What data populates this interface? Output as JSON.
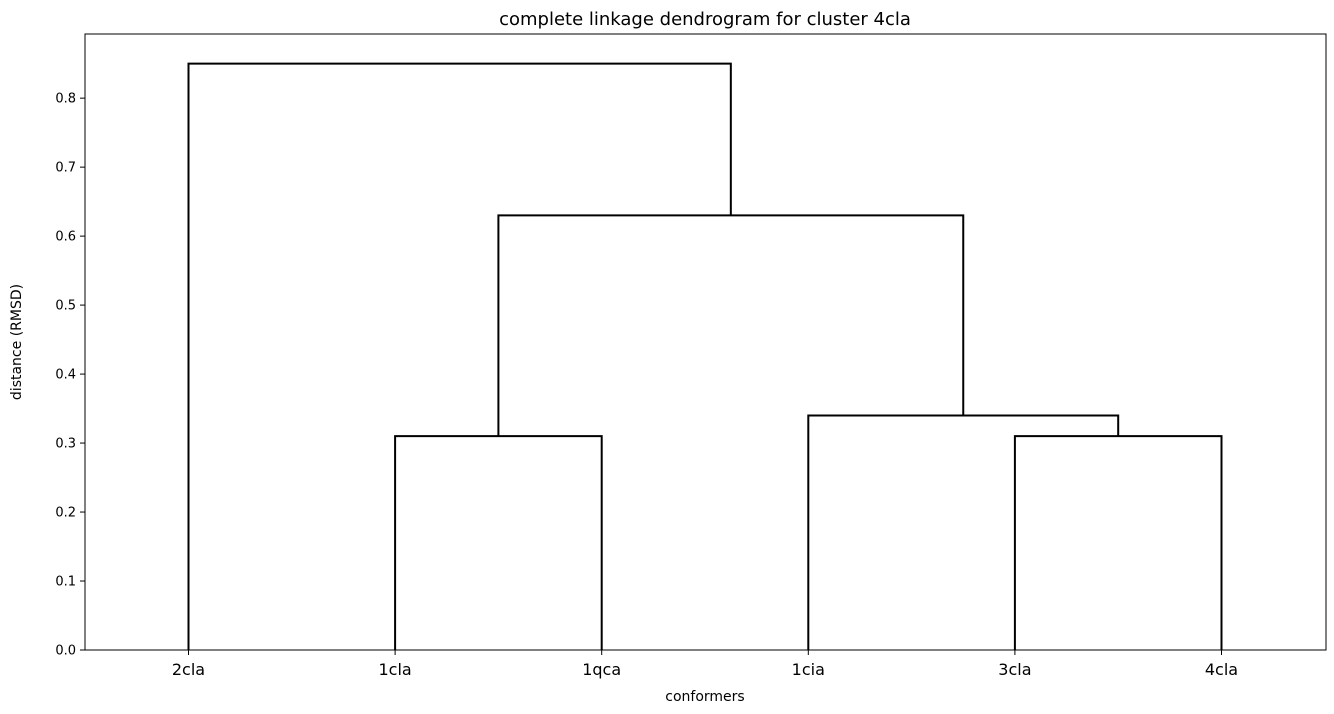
{
  "chart_data": {
    "type": "dendrogram",
    "title": "complete linkage dendrogram for cluster 4cla",
    "xlabel": "conformers",
    "ylabel": "distance (RMSD)",
    "ylim": [
      0,
      0.893
    ],
    "yticks": [
      0.0,
      0.1,
      0.2,
      0.3,
      0.4,
      0.5,
      0.6,
      0.7,
      0.8
    ],
    "ytick_labels": [
      "0.0",
      "0.1",
      "0.2",
      "0.3",
      "0.4",
      "0.5",
      "0.6",
      "0.7",
      "0.8"
    ],
    "leaves": [
      "2cla",
      "1cla",
      "1qca",
      "1cia",
      "3cla",
      "4cla"
    ],
    "merges": [
      {
        "left": "1cla",
        "right": "1qca",
        "distance": 0.31
      },
      {
        "left": "3cla",
        "right": "4cla",
        "distance": 0.31
      },
      {
        "left": "1cia",
        "right": "3cla+4cla",
        "distance": 0.34
      },
      {
        "left": "1cla+1qca",
        "right": "1cia+3cla+4cla",
        "distance": 0.63
      },
      {
        "left": "2cla",
        "right": "1cla+1qca+1cia+3cla+4cla",
        "distance": 0.85
      }
    ],
    "links": [
      {
        "name": "link-1cla-1qca",
        "left_pos": 1,
        "right_pos": 2,
        "left_height": 0.0,
        "right_height": 0.0,
        "height": 0.31
      },
      {
        "name": "link-3cla-4cla",
        "left_pos": 4,
        "right_pos": 5,
        "left_height": 0.0,
        "right_height": 0.0,
        "height": 0.31
      },
      {
        "name": "link-1cia-3cla4cla",
        "left_pos": 3,
        "right_pos": 4.5,
        "left_height": 0.0,
        "right_height": 0.31,
        "height": 0.34
      },
      {
        "name": "link-pair-trio",
        "left_pos": 1.5,
        "right_pos": 3.75,
        "left_height": 0.31,
        "right_height": 0.34,
        "height": 0.63
      },
      {
        "name": "link-root-2cla",
        "left_pos": 0,
        "right_pos": 2.625,
        "left_height": 0.0,
        "right_height": 0.63,
        "height": 0.85
      }
    ],
    "line_color": "#000000",
    "grid": false
  }
}
